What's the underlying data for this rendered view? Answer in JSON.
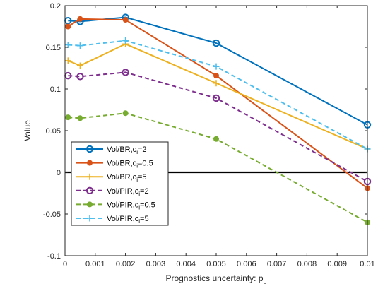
{
  "chart_data": {
    "type": "line",
    "title": "",
    "xlabel": "Prognostics uncertainty: p",
    "xlabel_sub": "u",
    "ylabel": "Value",
    "xlim": [
      0,
      0.01
    ],
    "ylim": [
      -0.1,
      0.2
    ],
    "xticks": [
      0,
      0.001,
      0.002,
      0.003,
      0.004,
      0.005,
      0.006,
      0.007,
      0.008,
      0.009,
      0.01
    ],
    "xtick_labels": [
      "0",
      "0.001",
      "0.002",
      "0.003",
      "0.004",
      "0.005",
      "0.006",
      "0.007",
      "0.008",
      "0.009",
      "0.01"
    ],
    "yticks": [
      -0.1,
      -0.05,
      0,
      0.05,
      0.1,
      0.15,
      0.2
    ],
    "ytick_labels": [
      "-0.1",
      "-0.05",
      "0",
      "0.05",
      "0.1",
      "0.15",
      "0.2"
    ],
    "grid": false,
    "legend_position": "lower-left",
    "x": [
      0.0001,
      0.0005,
      0.002,
      0.005,
      0.01
    ],
    "zero_line": true,
    "series": [
      {
        "name_main": "Vol/BR,c",
        "name_sub": "i",
        "name_tail": "=2",
        "values": [
          0.182,
          0.181,
          0.186,
          0.155,
          0.057
        ],
        "color": "#0072BD",
        "dash": false,
        "marker": "circle"
      },
      {
        "name_main": "Vol/BR,c",
        "name_sub": "i",
        "name_tail": "=0.5",
        "values": [
          0.175,
          0.184,
          0.183,
          0.116,
          -0.019
        ],
        "color": "#D95319",
        "dash": false,
        "marker": "dot"
      },
      {
        "name_main": "Vol/BR,c",
        "name_sub": "i",
        "name_tail": "=5",
        "values": [
          0.134,
          0.128,
          0.154,
          0.107,
          0.028
        ],
        "color": "#EDB120",
        "dash": false,
        "marker": "plus"
      },
      {
        "name_main": "Vol/PIR,c",
        "name_sub": "i",
        "name_tail": "=2",
        "values": [
          0.116,
          0.115,
          0.12,
          0.089,
          -0.011
        ],
        "color": "#7E2F8E",
        "dash": true,
        "marker": "circle"
      },
      {
        "name_main": "Vol/PIR,c",
        "name_sub": "i",
        "name_tail": "=0.5",
        "values": [
          0.066,
          0.065,
          0.071,
          0.04,
          -0.06
        ],
        "color": "#77AC30",
        "dash": true,
        "marker": "dot"
      },
      {
        "name_main": "Vol/PIR,c",
        "name_sub": "i",
        "name_tail": "=5",
        "values": [
          0.153,
          0.152,
          0.158,
          0.127,
          0.028
        ],
        "color": "#4DBEEE",
        "dash": true,
        "marker": "plus"
      }
    ]
  }
}
